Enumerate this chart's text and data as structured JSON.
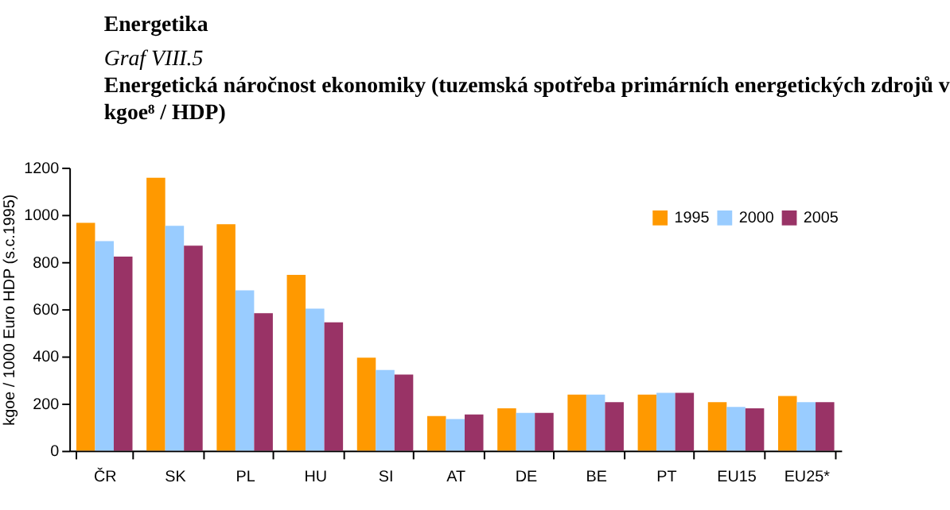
{
  "chart_data": {
    "type": "bar",
    "title": "Energetická náročnost ekonomiky (tuzemská spotřeba primárních energetických zdrojů v kgoe⁸ / HDP)",
    "annotations": [
      "Energetika",
      "Graf VIII.5"
    ],
    "ylabel": "kgoe / 1000 Euro HDP (s.c.1995)",
    "categories": [
      "ČR",
      "SK",
      "PL",
      "HU",
      "SI",
      "AT",
      "DE",
      "BE",
      "PT",
      "EU15",
      "EU25*"
    ],
    "series": [
      {
        "name": "1995",
        "color": "#ff9900",
        "values": [
          966,
          1157,
          960,
          745,
          394,
          147,
          180,
          238,
          238,
          206,
          232
        ]
      },
      {
        "name": "2000",
        "color": "#99ccff",
        "values": [
          888,
          953,
          680,
          602,
          342,
          134,
          160,
          238,
          245,
          186,
          206
        ]
      },
      {
        "name": "2005",
        "color": "#993366",
        "values": [
          823,
          869,
          583,
          544,
          323,
          154,
          160,
          206,
          245,
          180,
          206
        ]
      }
    ],
    "ylim": [
      0,
      1200
    ],
    "yticks": [
      0,
      200,
      400,
      600,
      800,
      {
        "value": 1000,
        "label": "1000"
      },
      {
        "value": 1200,
        "label": "1200"
      }
    ],
    "grid": false,
    "legend": "top right"
  }
}
